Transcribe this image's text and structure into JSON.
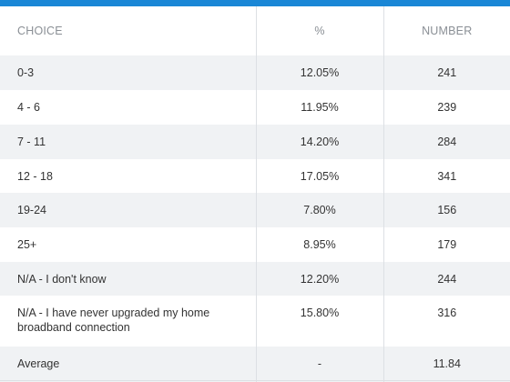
{
  "table": {
    "headers": {
      "choice": "CHOICE",
      "percent": "%",
      "number": "NUMBER"
    },
    "rows": [
      {
        "choice": "0-3",
        "percent": "12.05%",
        "number": "241"
      },
      {
        "choice": "4 - 6",
        "percent": "11.95%",
        "number": "239"
      },
      {
        "choice": "7 - 11",
        "percent": "14.20%",
        "number": "284"
      },
      {
        "choice": "12 - 18",
        "percent": "17.05%",
        "number": "341"
      },
      {
        "choice": "19-24",
        "percent": "7.80%",
        "number": "156"
      },
      {
        "choice": "25+",
        "percent": "8.95%",
        "number": "179"
      },
      {
        "choice": "N/A - I don't know",
        "percent": "12.20%",
        "number": "244"
      },
      {
        "choice": "N/A - I have never upgraded my home broadband connection",
        "percent": "15.80%",
        "number": "316"
      },
      {
        "choice": "Average",
        "percent": "-",
        "number": "11.84"
      }
    ]
  },
  "colors": {
    "accent_bar": "#1a87d6",
    "row_shade": "#f0f2f4",
    "header_text": "#8a8f95",
    "body_text": "#333333"
  }
}
